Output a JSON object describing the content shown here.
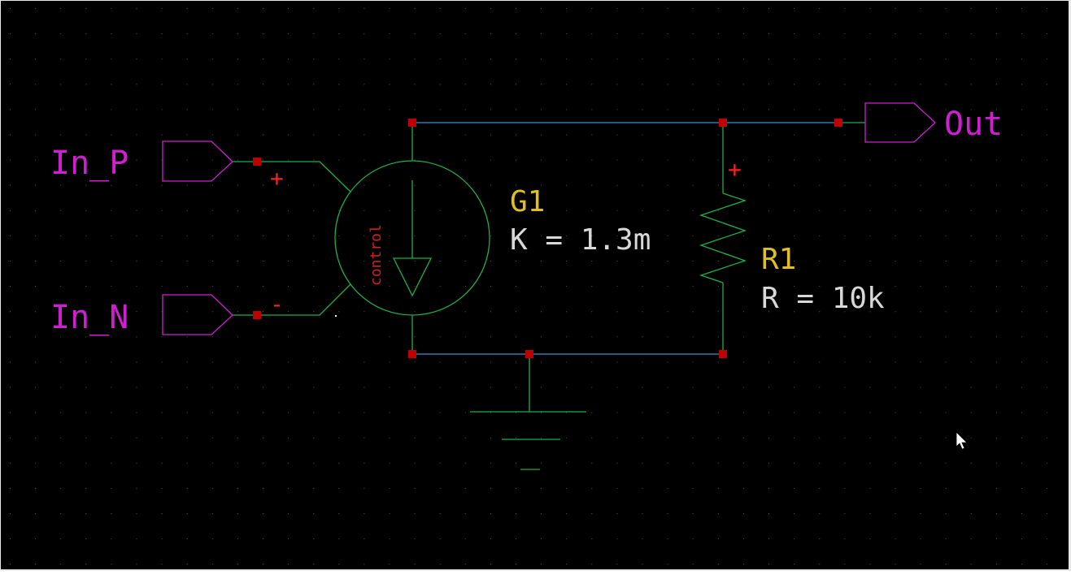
{
  "colors": {
    "background": "#000000",
    "grid_dot": "#555555",
    "wire": "#3b8fd6",
    "component": "#1eb04a",
    "node": "#c00000",
    "port": "#d01fd0",
    "ref_label": "#e0c020",
    "value_label": "#d8d8d8",
    "sign": "#ff2020",
    "cursor": "#ffffff"
  },
  "ports": {
    "in_p": {
      "label": "In_P",
      "icon": "port-arrow-icon"
    },
    "in_n": {
      "label": "In_N",
      "icon": "port-arrow-icon"
    },
    "out": {
      "label": "Out",
      "icon": "port-arrow-icon"
    }
  },
  "components": {
    "g1": {
      "ref": "G1",
      "value": "K = 1.3m",
      "control_text": "control",
      "plus_sign": "+",
      "minus_sign": "-"
    },
    "r1": {
      "ref": "R1",
      "value": "R = 10k",
      "plus_sign": "+"
    },
    "ground": {
      "icon": "ground-icon"
    }
  },
  "cursor": {
    "icon": "mouse-pointer-icon"
  }
}
